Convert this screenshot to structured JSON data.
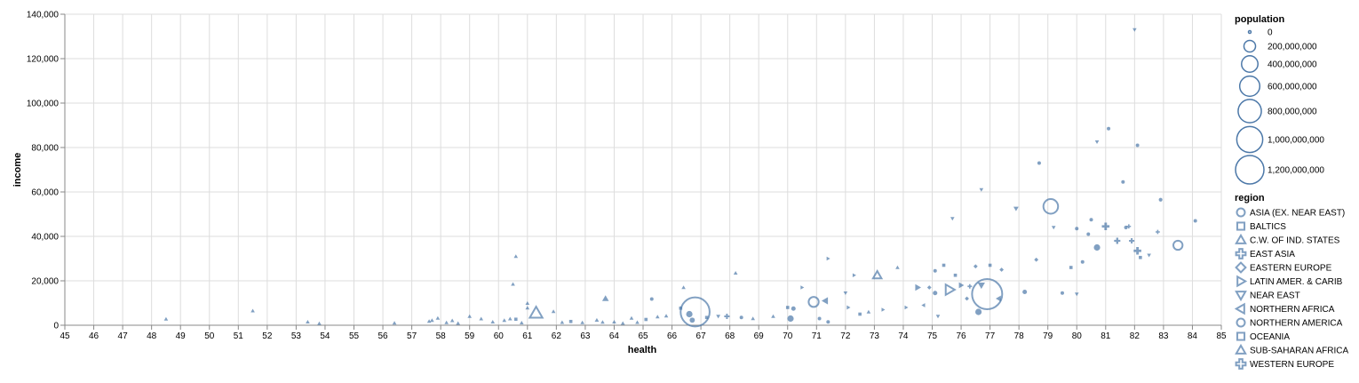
{
  "chart_data": {
    "type": "scatter",
    "xlabel": "health",
    "ylabel": "income",
    "xlim": [
      45,
      85
    ],
    "ylim": [
      0,
      140000
    ],
    "x_ticks": [
      45,
      46,
      47,
      48,
      49,
      50,
      51,
      52,
      53,
      54,
      55,
      56,
      57,
      58,
      59,
      60,
      61,
      62,
      63,
      64,
      65,
      66,
      67,
      68,
      69,
      70,
      71,
      72,
      73,
      74,
      75,
      76,
      77,
      78,
      79,
      80,
      81,
      82,
      83,
      84,
      85
    ],
    "y_ticks": [
      0,
      20000,
      40000,
      60000,
      80000,
      100000,
      120000,
      140000
    ],
    "y_tick_labels": [
      "0",
      "20,000",
      "40,000",
      "60,000",
      "80,000",
      "100,000",
      "120,000",
      "140,000"
    ],
    "grid": true,
    "color": "#4c78a8",
    "size_legend": {
      "title": "population",
      "entries": [
        {
          "value": 0,
          "label": "0"
        },
        {
          "value": 200000000,
          "label": "200,000,000"
        },
        {
          "value": 400000000,
          "label": "400,000,000"
        },
        {
          "value": 600000000,
          "label": "600,000,000"
        },
        {
          "value": 800000000,
          "label": "800,000,000"
        },
        {
          "value": 1000000000,
          "label": "1,000,000,000"
        },
        {
          "value": 1200000000,
          "label": "1,200,000,000"
        }
      ]
    },
    "shape_legend": {
      "title": "region",
      "entries": [
        {
          "region": "ASIA (EX. NEAR EAST)",
          "shape": "circle"
        },
        {
          "region": "BALTICS",
          "shape": "square"
        },
        {
          "region": "C.W. OF IND. STATES",
          "shape": "triangle-up"
        },
        {
          "region": "EAST ASIA",
          "shape": "cross"
        },
        {
          "region": "EASTERN EUROPE",
          "shape": "diamond"
        },
        {
          "region": "LATIN AMER. & CARIB",
          "shape": "triangle-right"
        },
        {
          "region": "NEAR EAST",
          "shape": "triangle-down"
        },
        {
          "region": "NORTHERN AFRICA",
          "shape": "triangle-left"
        },
        {
          "region": "NORTHERN AMERICA",
          "shape": "circle"
        },
        {
          "region": "OCEANIA",
          "shape": "square"
        },
        {
          "region": "SUB-SAHARAN AFRICA",
          "shape": "triangle-up"
        },
        {
          "region": "WESTERN EUROPE",
          "shape": "cross"
        }
      ]
    },
    "points": [
      {
        "health": 48.5,
        "income": 2800,
        "shape": "triangle-up",
        "pop": 5000000
      },
      {
        "health": 51.5,
        "income": 6500,
        "shape": "triangle-up",
        "pop": 5000000
      },
      {
        "health": 53.4,
        "income": 1500,
        "shape": "triangle-up",
        "pop": 5000000
      },
      {
        "health": 53.8,
        "income": 800,
        "shape": "triangle-up",
        "pop": 5000000
      },
      {
        "health": 56.4,
        "income": 1000,
        "shape": "triangle-up",
        "pop": 8000000
      },
      {
        "health": 57.6,
        "income": 1800,
        "shape": "triangle-up",
        "pop": 15000000
      },
      {
        "health": 57.7,
        "income": 2200,
        "shape": "triangle-up",
        "pop": 10000000
      },
      {
        "health": 57.9,
        "income": 3200,
        "shape": "triangle-up",
        "pop": 5000000
      },
      {
        "health": 58.2,
        "income": 1200,
        "shape": "triangle-up",
        "pop": 5000000
      },
      {
        "health": 58.4,
        "income": 2100,
        "shape": "triangle-up",
        "pop": 5000000
      },
      {
        "health": 58.6,
        "income": 900,
        "shape": "triangle-up",
        "pop": 5000000
      },
      {
        "health": 59.0,
        "income": 4000,
        "shape": "triangle-up",
        "pop": 5000000
      },
      {
        "health": 59.4,
        "income": 2900,
        "shape": "triangle-up",
        "pop": 5000000
      },
      {
        "health": 59.8,
        "income": 1500,
        "shape": "triangle-up",
        "pop": 5000000
      },
      {
        "health": 60.2,
        "income": 2200,
        "shape": "triangle-up",
        "pop": 15000000
      },
      {
        "health": 60.4,
        "income": 2900,
        "shape": "triangle-up",
        "pop": 5000000
      },
      {
        "health": 60.5,
        "income": 18500,
        "shape": "triangle-up",
        "pop": 2000000
      },
      {
        "health": 60.6,
        "income": 31000,
        "shape": "triangle-up",
        "pop": 2000000
      },
      {
        "health": 60.6,
        "income": 2700,
        "shape": "square",
        "pop": 5000000
      },
      {
        "health": 60.8,
        "income": 1100,
        "shape": "triangle-up",
        "pop": 5000000
      },
      {
        "health": 61.0,
        "income": 9900,
        "shape": "triangle-up",
        "pop": 2000000
      },
      {
        "health": 61.0,
        "income": 7800,
        "shape": "triangle-up",
        "pop": 2000000
      },
      {
        "health": 61.3,
        "income": 5500,
        "shape": "triangle-up",
        "pop": 180000000
      },
      {
        "health": 61.9,
        "income": 6200,
        "shape": "triangle-up",
        "pop": 5000000
      },
      {
        "health": 62.2,
        "income": 1300,
        "shape": "triangle-up",
        "pop": 5000000
      },
      {
        "health": 62.5,
        "income": 1700,
        "shape": "square",
        "pop": 3000000
      },
      {
        "health": 62.9,
        "income": 1200,
        "shape": "triangle-up",
        "pop": 5000000
      },
      {
        "health": 63.4,
        "income": 2300,
        "shape": "triangle-up",
        "pop": 20000000
      },
      {
        "health": 63.6,
        "income": 1400,
        "shape": "triangle-up",
        "pop": 10000000
      },
      {
        "health": 63.7,
        "income": 12000,
        "shape": "triangle-up",
        "pop": 50000000
      },
      {
        "health": 64.0,
        "income": 1500,
        "shape": "triangle-up",
        "pop": 5000000
      },
      {
        "health": 64.3,
        "income": 900,
        "shape": "triangle-up",
        "pop": 5000000
      },
      {
        "health": 64.6,
        "income": 3200,
        "shape": "triangle-up",
        "pop": 5000000
      },
      {
        "health": 64.8,
        "income": 1300,
        "shape": "triangle-up",
        "pop": 5000000
      },
      {
        "health": 65.1,
        "income": 2600,
        "shape": "square",
        "pop": 2000000
      },
      {
        "health": 65.3,
        "income": 11800,
        "shape": "circle",
        "pop": 2000000
      },
      {
        "health": 65.5,
        "income": 3800,
        "shape": "triangle-up",
        "pop": 5000000
      },
      {
        "health": 65.8,
        "income": 4200,
        "shape": "triangle-up",
        "pop": 5000000
      },
      {
        "health": 66.3,
        "income": 7700,
        "shape": "square",
        "pop": 3000000
      },
      {
        "health": 66.4,
        "income": 17000,
        "shape": "triangle-up",
        "pop": 2000000
      },
      {
        "health": 66.6,
        "income": 5000,
        "shape": "circle",
        "pop": 60000000
      },
      {
        "health": 66.7,
        "income": 2300,
        "shape": "circle",
        "pop": 40000000
      },
      {
        "health": 66.8,
        "income": 6000,
        "shape": "circle",
        "pop": 1250000000
      },
      {
        "health": 67.2,
        "income": 3500,
        "shape": "square",
        "pop": 2000000
      },
      {
        "health": 67.6,
        "income": 4000,
        "shape": "triangle-down",
        "pop": 20000000
      },
      {
        "health": 67.9,
        "income": 4000,
        "shape": "cross",
        "pop": 30000000
      },
      {
        "health": 68.2,
        "income": 23500,
        "shape": "triangle-up",
        "pop": 3000000
      },
      {
        "health": 68.4,
        "income": 3500,
        "shape": "circle",
        "pop": 5000000
      },
      {
        "health": 68.8,
        "income": 3000,
        "shape": "triangle-up",
        "pop": 5000000
      },
      {
        "health": 69.5,
        "income": 4000,
        "shape": "triangle-up",
        "pop": 5000000
      },
      {
        "health": 70.0,
        "income": 8000,
        "shape": "square",
        "pop": 3000000
      },
      {
        "health": 70.1,
        "income": 3000,
        "shape": "circle",
        "pop": 60000000
      },
      {
        "health": 70.2,
        "income": 7500,
        "shape": "circle",
        "pop": 30000000
      },
      {
        "health": 70.5,
        "income": 17000,
        "shape": "triangle-right",
        "pop": 5000000
      },
      {
        "health": 70.9,
        "income": 10500,
        "shape": "circle",
        "pop": 150000000
      },
      {
        "health": 71.1,
        "income": 3000,
        "shape": "circle",
        "pop": 10000000
      },
      {
        "health": 71.3,
        "income": 11000,
        "shape": "triangle-left",
        "pop": 60000000
      },
      {
        "health": 71.4,
        "income": 30000,
        "shape": "triangle-right",
        "pop": 3000000
      },
      {
        "health": 71.4,
        "income": 1500,
        "shape": "circle",
        "pop": 5000000
      },
      {
        "health": 72.0,
        "income": 14500,
        "shape": "triangle-down",
        "pop": 10000000
      },
      {
        "health": 72.1,
        "income": 8000,
        "shape": "triangle-right",
        "pop": 20000000
      },
      {
        "health": 72.3,
        "income": 22500,
        "shape": "triangle-right",
        "pop": 3000000
      },
      {
        "health": 72.5,
        "income": 5000,
        "shape": "square",
        "pop": 5000000
      },
      {
        "health": 72.8,
        "income": 6000,
        "shape": "triangle-up",
        "pop": 5000000
      },
      {
        "health": 73.1,
        "income": 22500,
        "shape": "triangle-up",
        "pop": 80000000
      },
      {
        "health": 73.3,
        "income": 7000,
        "shape": "triangle-right",
        "pop": 5000000
      },
      {
        "health": 73.8,
        "income": 26000,
        "shape": "triangle-up",
        "pop": 3000000
      },
      {
        "health": 74.1,
        "income": 8000,
        "shape": "triangle-right",
        "pop": 10000000
      },
      {
        "health": 74.5,
        "income": 17000,
        "shape": "triangle-right",
        "pop": 50000000
      },
      {
        "health": 74.7,
        "income": 9000,
        "shape": "triangle-left",
        "pop": 20000000
      },
      {
        "health": 74.9,
        "income": 17000,
        "shape": "diamond",
        "pop": 5000000
      },
      {
        "health": 75.1,
        "income": 14500,
        "shape": "circle",
        "pop": 30000000
      },
      {
        "health": 75.1,
        "income": 24500,
        "shape": "circle",
        "pop": 10000000
      },
      {
        "health": 75.2,
        "income": 4000,
        "shape": "triangle-down",
        "pop": 10000000
      },
      {
        "health": 75.4,
        "income": 27000,
        "shape": "square",
        "pop": 3000000
      },
      {
        "health": 75.6,
        "income": 16000,
        "shape": "triangle-right",
        "pop": 120000000
      },
      {
        "health": 75.7,
        "income": 48000,
        "shape": "triangle-down",
        "pop": 5000000
      },
      {
        "health": 75.8,
        "income": 22500,
        "shape": "square",
        "pop": 3000000
      },
      {
        "health": 76.0,
        "income": 18000,
        "shape": "triangle-right",
        "pop": 40000000
      },
      {
        "health": 76.2,
        "income": 12000,
        "shape": "diamond",
        "pop": 5000000
      },
      {
        "health": 76.3,
        "income": 17500,
        "shape": "cross",
        "pop": 20000000
      },
      {
        "health": 76.5,
        "income": 26500,
        "shape": "diamond",
        "pop": 5000000
      },
      {
        "health": 76.6,
        "income": 6000,
        "shape": "circle",
        "pop": 60000000
      },
      {
        "health": 76.7,
        "income": 61000,
        "shape": "triangle-down",
        "pop": 5000000
      },
      {
        "health": 76.7,
        "income": 18000,
        "shape": "triangle-down",
        "pop": 60000000
      },
      {
        "health": 76.9,
        "income": 14000,
        "shape": "circle",
        "pop": 1350000000
      },
      {
        "health": 77.0,
        "income": 27000,
        "shape": "square",
        "pop": 3000000
      },
      {
        "health": 77.3,
        "income": 12000,
        "shape": "triangle-left",
        "pop": 40000000
      },
      {
        "health": 77.4,
        "income": 25000,
        "shape": "diamond",
        "pop": 10000000
      },
      {
        "health": 77.9,
        "income": 52500,
        "shape": "triangle-down",
        "pop": 30000000
      },
      {
        "health": 78.2,
        "income": 15000,
        "shape": "circle",
        "pop": 30000000
      },
      {
        "health": 78.6,
        "income": 29500,
        "shape": "diamond",
        "pop": 5000000
      },
      {
        "health": 78.7,
        "income": 73000,
        "shape": "circle",
        "pop": 3000000
      },
      {
        "health": 79.1,
        "income": 53500,
        "shape": "circle",
        "pop": 320000000
      },
      {
        "health": 79.2,
        "income": 44000,
        "shape": "triangle-down",
        "pop": 10000000
      },
      {
        "health": 79.5,
        "income": 14500,
        "shape": "circle",
        "pop": 5000000
      },
      {
        "health": 79.8,
        "income": 26000,
        "shape": "square",
        "pop": 5000000
      },
      {
        "health": 80.0,
        "income": 14000,
        "shape": "triangle-down",
        "pop": 10000000
      },
      {
        "health": 80.0,
        "income": 43500,
        "shape": "circle",
        "pop": 5000000
      },
      {
        "health": 80.2,
        "income": 28500,
        "shape": "circle",
        "pop": 5000000
      },
      {
        "health": 80.4,
        "income": 41000,
        "shape": "circle",
        "pop": 10000000
      },
      {
        "health": 80.5,
        "income": 47500,
        "shape": "circle",
        "pop": 10000000
      },
      {
        "health": 80.7,
        "income": 35000,
        "shape": "circle",
        "pop": 60000000
      },
      {
        "health": 80.7,
        "income": 82500,
        "shape": "triangle-down",
        "pop": 3000000
      },
      {
        "health": 81.0,
        "income": 44500,
        "shape": "cross",
        "pop": 60000000
      },
      {
        "health": 81.1,
        "income": 88500,
        "shape": "circle",
        "pop": 3000000
      },
      {
        "health": 81.4,
        "income": 38000,
        "shape": "cross",
        "pop": 40000000
      },
      {
        "health": 81.6,
        "income": 64500,
        "shape": "circle",
        "pop": 5000000
      },
      {
        "health": 81.7,
        "income": 44000,
        "shape": "circle",
        "pop": 20000000
      },
      {
        "health": 81.8,
        "income": 44500,
        "shape": "cross",
        "pop": 10000000
      },
      {
        "health": 81.9,
        "income": 38000,
        "shape": "cross",
        "pop": 30000000
      },
      {
        "health": 82.0,
        "income": 133000,
        "shape": "triangle-down",
        "pop": 2000000
      },
      {
        "health": 82.1,
        "income": 81000,
        "shape": "circle",
        "pop": 5000000
      },
      {
        "health": 82.1,
        "income": 33500,
        "shape": "cross",
        "pop": 60000000
      },
      {
        "health": 82.2,
        "income": 30500,
        "shape": "square",
        "pop": 3000000
      },
      {
        "health": 82.5,
        "income": 31500,
        "shape": "triangle-down",
        "pop": 5000000
      },
      {
        "health": 82.8,
        "income": 42000,
        "shape": "cross",
        "pop": 10000000
      },
      {
        "health": 82.9,
        "income": 56500,
        "shape": "circle",
        "pop": 20000000
      },
      {
        "health": 83.5,
        "income": 36000,
        "shape": "circle",
        "pop": 125000000
      },
      {
        "health": 84.1,
        "income": 47000,
        "shape": "circle",
        "pop": 5000000
      }
    ]
  }
}
